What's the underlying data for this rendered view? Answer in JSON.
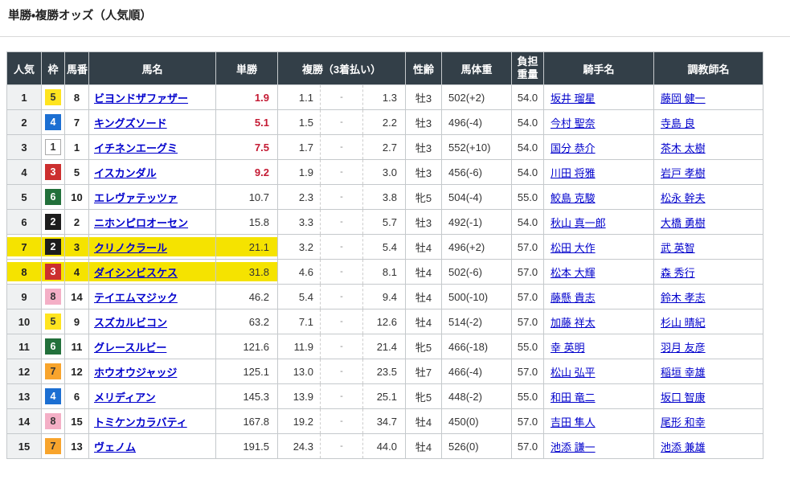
{
  "page_title": "単勝・複勝オッズ（人気順）",
  "colors": {
    "header_bg": "#333f48",
    "highlight_yellow": "#f5e300",
    "hot_odds_red": "#c41a33",
    "link_blue": "#0000cc",
    "popularity_col_bg": "#eff1f2",
    "cell_border": "#c5c9cc",
    "frame_colors": {
      "1": {
        "bg": "#ffffff",
        "text": "#333333",
        "border": "#aaaaaa"
      },
      "2": {
        "bg": "#1d1d1d",
        "text": "#ffffff"
      },
      "3": {
        "bg": "#cc2f2f",
        "text": "#ffffff"
      },
      "4": {
        "bg": "#1c6fd2",
        "text": "#ffffff"
      },
      "5": {
        "bg": "#ffe41f",
        "text": "#333333"
      },
      "6": {
        "bg": "#22703b",
        "text": "#ffffff"
      },
      "7": {
        "bg": "#f8a42c",
        "text": "#333333"
      },
      "8": {
        "bg": "#f4afc6",
        "text": "#333333"
      }
    }
  },
  "table": {
    "headers": {
      "popularity": "人気",
      "frame": "枠",
      "horse_number": "馬番",
      "horse_name": "馬名",
      "win": "単勝",
      "place": "複勝（3着払い）",
      "sex_age": "性齢",
      "weight": "馬体重",
      "carried_weight": "負担重量",
      "jockey": "騎手名",
      "trainer": "調教師名"
    },
    "place_separator": "-",
    "rows": [
      {
        "popularity": "1",
        "frame": 5,
        "horse_number": "8",
        "horse_name": "ビヨンドザファザー",
        "win": "1.9",
        "win_hot": true,
        "place_min": "1.1",
        "place_max": "1.3",
        "sex_age": "牡3",
        "weight": "502(+2)",
        "carried": "54.0",
        "jockey": "坂井 瑠星",
        "trainer": "藤岡 健一",
        "highlight": false
      },
      {
        "popularity": "2",
        "frame": 4,
        "horse_number": "7",
        "horse_name": "キングズソード",
        "win": "5.1",
        "win_hot": true,
        "place_min": "1.5",
        "place_max": "2.2",
        "sex_age": "牡3",
        "weight": "496(-4)",
        "carried": "54.0",
        "jockey": "今村 聖奈",
        "trainer": "寺島 良",
        "highlight": false
      },
      {
        "popularity": "3",
        "frame": 1,
        "horse_number": "1",
        "horse_name": "イチネンエーグミ",
        "win": "7.5",
        "win_hot": true,
        "place_min": "1.7",
        "place_max": "2.7",
        "sex_age": "牡3",
        "weight": "552(+10)",
        "carried": "54.0",
        "jockey": "国分 恭介",
        "trainer": "茶木 太樹",
        "highlight": false
      },
      {
        "popularity": "4",
        "frame": 3,
        "horse_number": "5",
        "horse_name": "イスカンダル",
        "win": "9.2",
        "win_hot": true,
        "place_min": "1.9",
        "place_max": "3.0",
        "sex_age": "牡3",
        "weight": "456(-6)",
        "carried": "54.0",
        "jockey": "川田 将雅",
        "trainer": "岩戸 孝樹",
        "highlight": false
      },
      {
        "popularity": "5",
        "frame": 6,
        "horse_number": "10",
        "horse_name": "エレヴァテッツァ",
        "win": "10.7",
        "win_hot": false,
        "place_min": "2.3",
        "place_max": "3.8",
        "sex_age": "牝5",
        "weight": "504(-4)",
        "carried": "55.0",
        "jockey": "鮫島 克駿",
        "trainer": "松永 幹夫",
        "highlight": false
      },
      {
        "popularity": "6",
        "frame": 2,
        "horse_number": "2",
        "horse_name": "ニホンピロオーセン",
        "win": "15.8",
        "win_hot": false,
        "place_min": "3.3",
        "place_max": "5.7",
        "sex_age": "牡3",
        "weight": "492(-1)",
        "carried": "54.0",
        "jockey": "秋山 真一郎",
        "trainer": "大橋 勇樹",
        "highlight": false
      },
      {
        "popularity": "7",
        "frame": 2,
        "horse_number": "3",
        "horse_name": "クリノクラール",
        "win": "21.1",
        "win_hot": false,
        "place_min": "3.2",
        "place_max": "5.4",
        "sex_age": "牡4",
        "weight": "496(+2)",
        "carried": "57.0",
        "jockey": "松田 大作",
        "trainer": "武 英智",
        "highlight": true
      },
      {
        "popularity": "8",
        "frame": 3,
        "horse_number": "4",
        "horse_name": "ダイシンビスケス",
        "win": "31.8",
        "win_hot": false,
        "place_min": "4.6",
        "place_max": "8.1",
        "sex_age": "牡4",
        "weight": "502(-6)",
        "carried": "57.0",
        "jockey": "松本 大輝",
        "trainer": "森 秀行",
        "highlight": true
      },
      {
        "popularity": "9",
        "frame": 8,
        "horse_number": "14",
        "horse_name": "テイエムマジック",
        "win": "46.2",
        "win_hot": false,
        "place_min": "5.4",
        "place_max": "9.4",
        "sex_age": "牡4",
        "weight": "500(-10)",
        "carried": "57.0",
        "jockey": "藤懸 貴志",
        "trainer": "鈴木 孝志",
        "highlight": false
      },
      {
        "popularity": "10",
        "frame": 5,
        "horse_number": "9",
        "horse_name": "スズカルビコン",
        "win": "63.2",
        "win_hot": false,
        "place_min": "7.1",
        "place_max": "12.6",
        "sex_age": "牡4",
        "weight": "514(-2)",
        "carried": "57.0",
        "jockey": "加藤 祥太",
        "trainer": "杉山 晴紀",
        "highlight": false
      },
      {
        "popularity": "11",
        "frame": 6,
        "horse_number": "11",
        "horse_name": "グレースルビー",
        "win": "121.6",
        "win_hot": false,
        "place_min": "11.9",
        "place_max": "21.4",
        "sex_age": "牝5",
        "weight": "466(-18)",
        "carried": "55.0",
        "jockey": "幸 英明",
        "trainer": "羽月 友彦",
        "highlight": false
      },
      {
        "popularity": "12",
        "frame": 7,
        "horse_number": "12",
        "horse_name": "ホウオウジャッジ",
        "win": "125.1",
        "win_hot": false,
        "place_min": "13.0",
        "place_max": "23.5",
        "sex_age": "牡7",
        "weight": "466(-4)",
        "carried": "57.0",
        "jockey": "松山 弘平",
        "trainer": "稲垣 幸雄",
        "highlight": false
      },
      {
        "popularity": "13",
        "frame": 4,
        "horse_number": "6",
        "horse_name": "メリディアン",
        "win": "145.3",
        "win_hot": false,
        "place_min": "13.9",
        "place_max": "25.1",
        "sex_age": "牝5",
        "weight": "448(-2)",
        "carried": "55.0",
        "jockey": "和田 竜二",
        "trainer": "坂口 智康",
        "highlight": false
      },
      {
        "popularity": "14",
        "frame": 8,
        "horse_number": "15",
        "horse_name": "トミケンカラバティ",
        "win": "167.8",
        "win_hot": false,
        "place_min": "19.2",
        "place_max": "34.7",
        "sex_age": "牡4",
        "weight": "450(0)",
        "carried": "57.0",
        "jockey": "吉田 隼人",
        "trainer": "尾形 和幸",
        "highlight": false
      },
      {
        "popularity": "15",
        "frame": 7,
        "horse_number": "13",
        "horse_name": "ヴェノム",
        "win": "191.5",
        "win_hot": false,
        "place_min": "24.3",
        "place_max": "44.0",
        "sex_age": "牡4",
        "weight": "526(0)",
        "carried": "57.0",
        "jockey": "池添 謙一",
        "trainer": "池添 兼雄",
        "highlight": false
      }
    ]
  }
}
